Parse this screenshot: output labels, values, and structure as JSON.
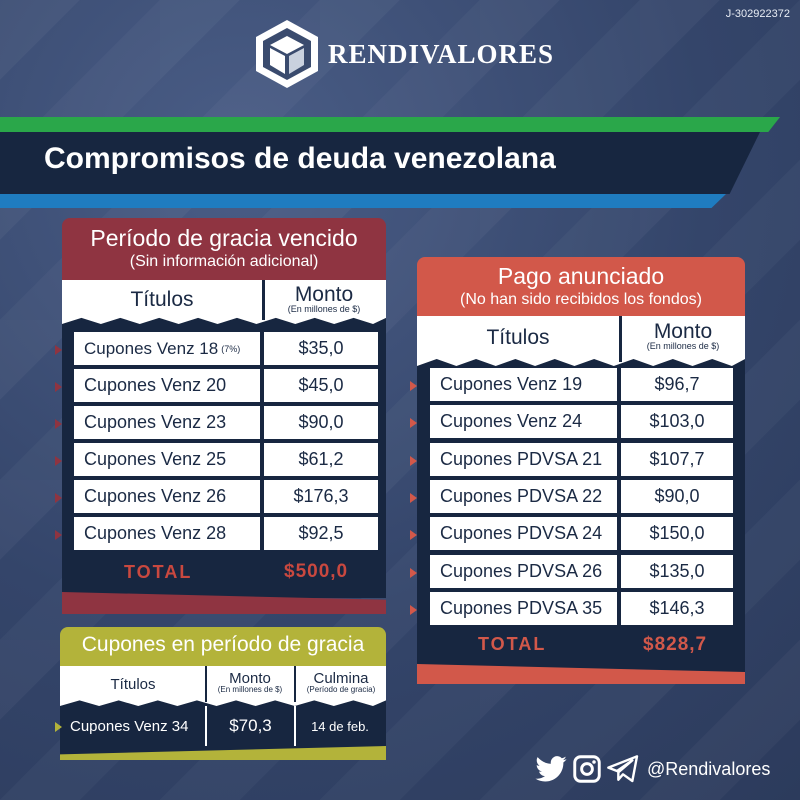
{
  "header": {
    "registry_id": "J-302922372",
    "brand_name": "RENDIVALORES",
    "title": "Compromisos de deuda venezolana"
  },
  "colors": {
    "navy": "#172640",
    "red": "#8f3441",
    "orange": "#d2584a",
    "olive": "#b3b33a",
    "green": "#2aa74a",
    "blue": "#1f7cc0"
  },
  "expired_grace": {
    "title": "Período de gracia vencido",
    "subtitle": "(Sin información adicional)",
    "col_title": "Títulos",
    "col_amount": "Monto",
    "col_amount_unit": "(En millones de $)",
    "rows": [
      {
        "name": "Cupones Venz 18",
        "note": "(7%)",
        "amount": "$35,0"
      },
      {
        "name": "Cupones Venz 20",
        "note": "",
        "amount": "$45,0"
      },
      {
        "name": "Cupones Venz 23",
        "note": "",
        "amount": "$90,0"
      },
      {
        "name": "Cupones Venz 25",
        "note": "",
        "amount": "$61,2"
      },
      {
        "name": "Cupones Venz 26",
        "note": "",
        "amount": "$176,3"
      },
      {
        "name": "Cupones Venz 28",
        "note": "",
        "amount": "$92,5"
      }
    ],
    "total_label": "TOTAL",
    "total_value": "$500,0"
  },
  "announced_payment": {
    "title": "Pago anunciado",
    "subtitle": "(No han sido recibidos los fondos)",
    "col_title": "Títulos",
    "col_amount": "Monto",
    "col_amount_unit": "(En millones de $)",
    "rows": [
      {
        "name": "Cupones Venz 19",
        "amount": "$96,7"
      },
      {
        "name": "Cupones Venz 24",
        "amount": "$103,0"
      },
      {
        "name": "Cupones PDVSA 21",
        "amount": "$107,7"
      },
      {
        "name": "Cupones PDVSA 22",
        "amount": "$90,0"
      },
      {
        "name": "Cupones PDVSA 24",
        "amount": "$150,0"
      },
      {
        "name": "Cupones PDVSA 26",
        "amount": "$135,0"
      },
      {
        "name": "Cupones PDVSA 35",
        "amount": "$146,3"
      }
    ],
    "total_label": "TOTAL",
    "total_value": "$828,7"
  },
  "in_grace": {
    "title": "Cupones en período de gracia",
    "col_title": "Títulos",
    "col_amount": "Monto",
    "col_amount_unit": "(En millones de $)",
    "col_end": "Culmina",
    "col_end_unit": "(Período de gracia)",
    "rows": [
      {
        "name": "Cupones Venz 34",
        "amount": "$70,3",
        "end": "14 de feb."
      }
    ]
  },
  "footer": {
    "icons": [
      "twitter-icon",
      "instagram-icon",
      "telegram-icon"
    ],
    "handle": "@Rendivalores"
  }
}
